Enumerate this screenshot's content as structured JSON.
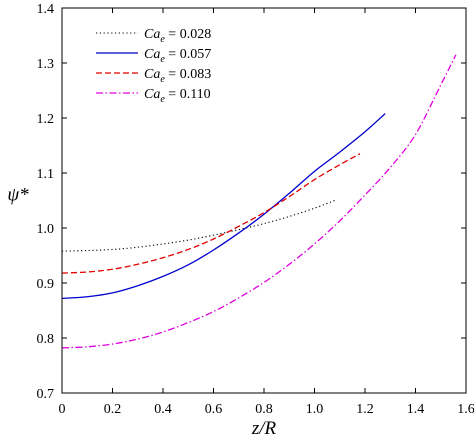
{
  "chart_data": {
    "type": "line",
    "xlabel": "z/R",
    "ylabel": "ψ*",
    "xlim": [
      0,
      1.6
    ],
    "ylim": [
      0.7,
      1.4
    ],
    "xticks": [
      "0",
      "0.2",
      "0.4",
      "0.6",
      "0.8",
      "1.0",
      "1.2",
      "1.4",
      "1.6"
    ],
    "yticks": [
      "0.7",
      "0.8",
      "0.9",
      "1.0",
      "1.1",
      "1.2",
      "1.3",
      "1.4"
    ],
    "grid": false,
    "legend_position": "top-left",
    "series": [
      {
        "name": "Ca_e = 0.028",
        "label_symbol": "Ca",
        "label_subscript": "e",
        "label_value": " = 0.028",
        "color": "#000000",
        "style": "dotted",
        "x": [
          0,
          0.1,
          0.2,
          0.3,
          0.4,
          0.5,
          0.6,
          0.7,
          0.8,
          0.9,
          1.0,
          1.08
        ],
        "y": [
          0.958,
          0.959,
          0.961,
          0.965,
          0.971,
          0.978,
          0.987,
          0.997,
          1.008,
          1.021,
          1.036,
          1.05
        ]
      },
      {
        "name": "Ca_e = 0.057",
        "label_symbol": "Ca",
        "label_subscript": "e",
        "label_value": " = 0.057",
        "color": "#0000cc",
        "style": "solid",
        "x": [
          0,
          0.1,
          0.2,
          0.3,
          0.4,
          0.5,
          0.6,
          0.7,
          0.8,
          0.9,
          1.0,
          1.1,
          1.2,
          1.28
        ],
        "y": [
          0.872,
          0.875,
          0.882,
          0.895,
          0.912,
          0.933,
          0.96,
          0.991,
          1.025,
          1.063,
          1.103,
          1.138,
          1.175,
          1.208
        ]
      },
      {
        "name": "Ca_e = 0.083",
        "label_symbol": "Ca",
        "label_subscript": "e",
        "label_value": " = 0.083",
        "color": "#e00000",
        "style": "dashed",
        "x": [
          0,
          0.1,
          0.2,
          0.3,
          0.4,
          0.5,
          0.6,
          0.7,
          0.8,
          0.9,
          1.0,
          1.1,
          1.18
        ],
        "y": [
          0.918,
          0.92,
          0.925,
          0.934,
          0.946,
          0.961,
          0.98,
          1.003,
          1.028,
          1.057,
          1.088,
          1.115,
          1.135
        ]
      },
      {
        "name": "Ca_e = 0.110",
        "label_symbol": "Ca",
        "label_subscript": "e",
        "label_value": " = 0.110",
        "color": "#e000e0",
        "style": "dashdot",
        "x": [
          0,
          0.1,
          0.2,
          0.3,
          0.4,
          0.5,
          0.6,
          0.7,
          0.8,
          0.9,
          1.0,
          1.1,
          1.2,
          1.3,
          1.4,
          1.5,
          1.56
        ],
        "y": [
          0.782,
          0.784,
          0.789,
          0.798,
          0.811,
          0.828,
          0.848,
          0.873,
          0.901,
          0.934,
          0.971,
          1.013,
          1.06,
          1.11,
          1.17,
          1.26,
          1.315
        ]
      }
    ]
  }
}
